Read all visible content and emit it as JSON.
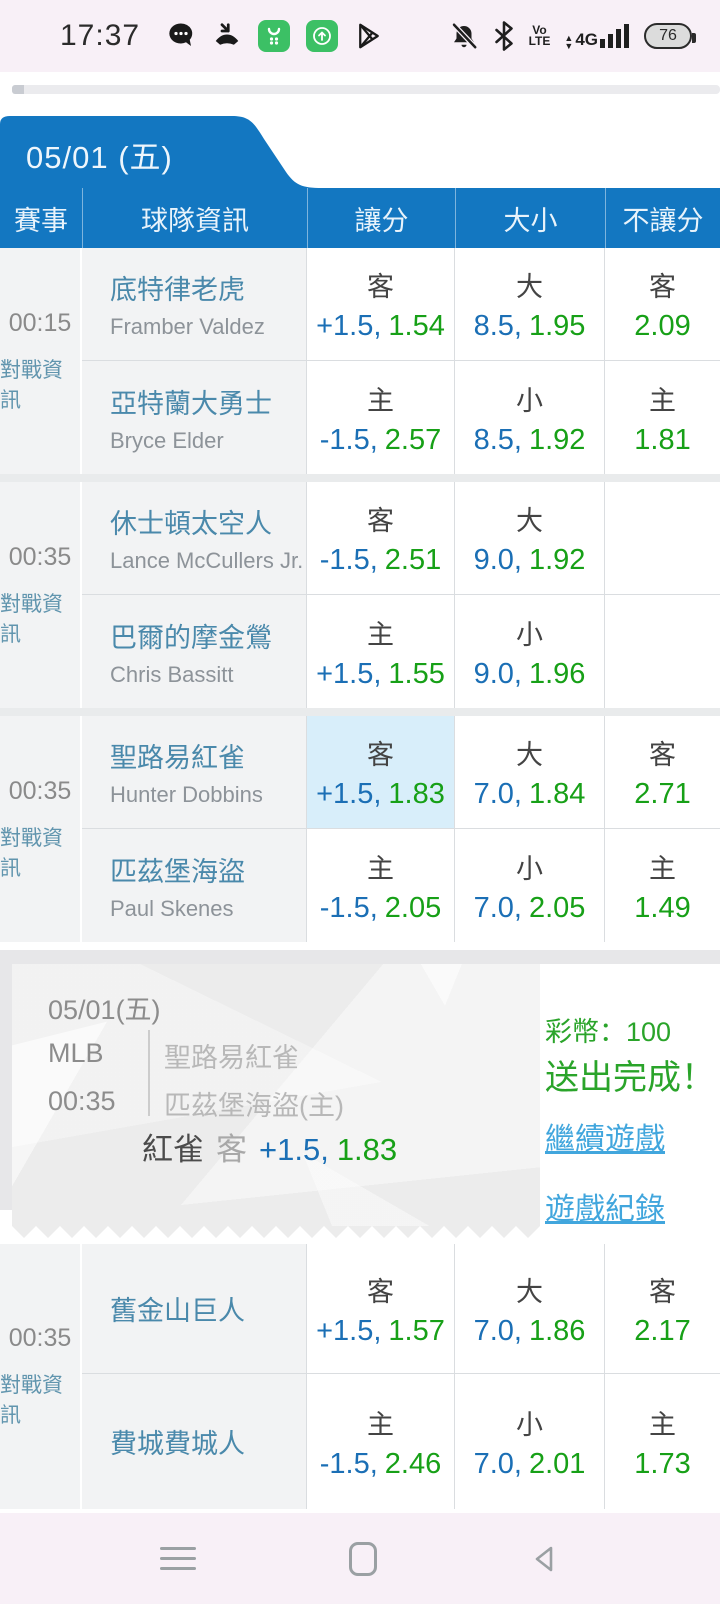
{
  "status_bar": {
    "time": "17:37",
    "battery_percent": "76",
    "volte_top": "Vo",
    "volte_bottom": "LTE",
    "network": "4G"
  },
  "date_tab": {
    "label": "05/01 (五)"
  },
  "table": {
    "headers": [
      "賽事",
      "球隊資訊",
      "讓分",
      "大小",
      "不讓分"
    ],
    "games": [
      {
        "time": "00:15",
        "info_link": "對戰資訊",
        "rows": [
          {
            "team": "底特律老虎",
            "pitcher": "Framber Valdez",
            "spread_side": "客",
            "spread_line": "+1.5,",
            "spread_odds": "1.54",
            "total_side": "大",
            "total_line": "8.5,",
            "total_odds": "1.95",
            "ml_side": "客",
            "ml_odds": "2.09"
          },
          {
            "team": "亞特蘭大勇士",
            "pitcher": "Bryce Elder",
            "spread_side": "主",
            "spread_line": "-1.5,",
            "spread_odds": "2.57",
            "total_side": "小",
            "total_line": "8.5,",
            "total_odds": "1.92",
            "ml_side": "主",
            "ml_odds": "1.81"
          }
        ]
      },
      {
        "time": "00:35",
        "info_link": "對戰資訊",
        "rows": [
          {
            "team": "休士頓太空人",
            "pitcher": "Lance McCullers Jr.",
            "spread_side": "客",
            "spread_line": "-1.5,",
            "spread_odds": "2.51",
            "total_side": "大",
            "total_line": "9.0,",
            "total_odds": "1.92",
            "ml_side": "",
            "ml_odds": ""
          },
          {
            "team": "巴爾的摩金鶯",
            "pitcher": "Chris Bassitt",
            "spread_side": "主",
            "spread_line": "+1.5,",
            "spread_odds": "1.55",
            "total_side": "小",
            "total_line": "9.0,",
            "total_odds": "1.96",
            "ml_side": "",
            "ml_odds": ""
          }
        ]
      },
      {
        "time": "00:35",
        "info_link": "對戰資訊",
        "rows": [
          {
            "team": "聖路易紅雀",
            "pitcher": "Hunter Dobbins",
            "spread_side": "客",
            "spread_line": "+1.5,",
            "spread_odds": "1.83",
            "total_side": "大",
            "total_line": "7.0,",
            "total_odds": "1.84",
            "ml_side": "客",
            "ml_odds": "2.71"
          },
          {
            "team": "匹茲堡海盜",
            "pitcher": "Paul Skenes",
            "spread_side": "主",
            "spread_line": "-1.5,",
            "spread_odds": "2.05",
            "total_side": "小",
            "total_line": "7.0,",
            "total_odds": "2.05",
            "ml_side": "主",
            "ml_odds": "1.49"
          }
        ]
      },
      {
        "time": "00:35",
        "info_link": "對戰資訊",
        "rows": [
          {
            "team": "舊金山巨人",
            "pitcher": "",
            "spread_side": "客",
            "spread_line": "+1.5,",
            "spread_odds": "1.57",
            "total_side": "大",
            "total_line": "7.0,",
            "total_odds": "1.86",
            "ml_side": "客",
            "ml_odds": "2.17"
          },
          {
            "team": "費城費城人",
            "pitcher": "",
            "spread_side": "主",
            "spread_line": "-1.5,",
            "spread_odds": "2.46",
            "total_side": "小",
            "total_line": "7.0,",
            "total_odds": "2.01",
            "ml_side": "主",
            "ml_odds": "1.73"
          }
        ]
      }
    ]
  },
  "bet_slip": {
    "date": "05/01(五)",
    "league": "MLB",
    "time": "00:35",
    "away_team": "聖路易紅雀",
    "home_team": "匹茲堡海盜(主)",
    "bet_team": "紅雀",
    "bet_side": "客",
    "bet_line": "+1.5,",
    "bet_odds": "1.83",
    "coins": "彩幣：100",
    "status": "送出完成！",
    "continue_link": "繼續遊戲",
    "history_link": "遊戲紀錄"
  }
}
